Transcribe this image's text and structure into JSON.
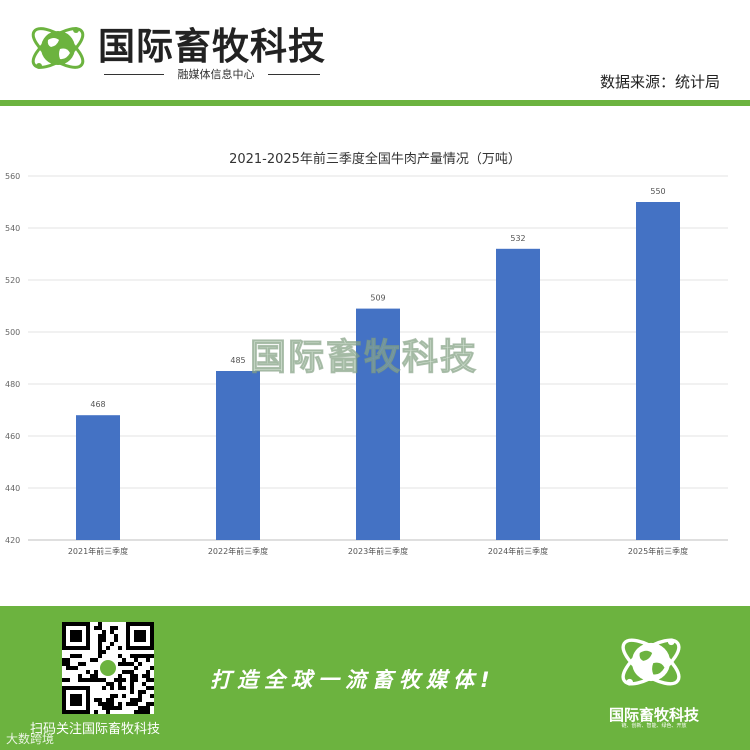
{
  "header": {
    "brand_title": "国际畜牧科技",
    "brand_subtitle": "融媒体信息中心",
    "source": "数据来源：统计局"
  },
  "watermark": "国际畜牧科技",
  "footer": {
    "qr_caption": "扫码关注国际畜牧科技",
    "slogan": "打造全球一流畜牧媒体!",
    "brand": "国际畜牧科技",
    "tagline": "链、创新、智能、绿色、开放",
    "corner_mark": "大数跨境"
  },
  "colors": {
    "bar": "#4472c4",
    "brand_green": "#6cb33f"
  },
  "chart_data": {
    "type": "bar",
    "title": "2021-2025年前三季度全国牛肉产量情况（万吨）",
    "categories": [
      "2021年前三季度",
      "2022年前三季度",
      "2023年前三季度",
      "2024年前三季度",
      "2025年前三季度"
    ],
    "values": [
      468,
      485,
      509,
      532,
      550
    ],
    "data_labels": [
      "468",
      "485",
      "509",
      "532",
      "550"
    ],
    "y_ticks": [
      "420",
      "440",
      "460",
      "480",
      "500",
      "520",
      "540",
      "560"
    ],
    "ylim": [
      420,
      560
    ],
    "grid": true,
    "legend": "none"
  }
}
